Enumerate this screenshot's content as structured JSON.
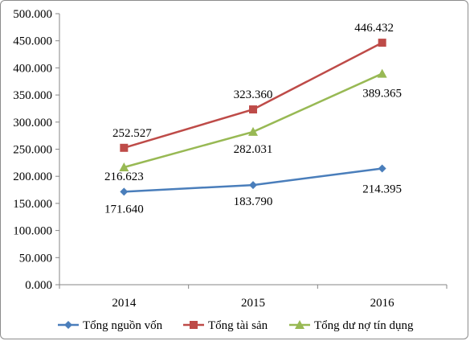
{
  "chart_data": {
    "type": "line",
    "categories": [
      "2014",
      "2015",
      "2016"
    ],
    "series": [
      {
        "name": "Tổng nguồn vốn",
        "values": [
          171640,
          183790,
          214395
        ],
        "labels": [
          "171.640",
          "183.790",
          "214.395"
        ],
        "color": "#4a7ebb",
        "marker": "diamond"
      },
      {
        "name": "Tổng tài sản",
        "values": [
          252527,
          323360,
          446432
        ],
        "labels": [
          "252.527",
          "323.360",
          "446.432"
        ],
        "color": "#be4b48",
        "marker": "square"
      },
      {
        "name": "Tổng dư nợ tín dụng",
        "values": [
          216623,
          282031,
          389365
        ],
        "labels": [
          "216.623",
          "282.031",
          "389.365"
        ],
        "color": "#98b954",
        "marker": "triangle"
      }
    ],
    "yticks": [
      0,
      50000,
      100000,
      150000,
      200000,
      250000,
      300000,
      350000,
      400000,
      450000,
      500000
    ],
    "ytick_labels": [
      "0.000",
      "50.000",
      "100.000",
      "150.000",
      "200.000",
      "250.000",
      "300.000",
      "350.000",
      "400.000",
      "450.000",
      "500.000"
    ],
    "ylim": [
      0,
      500000
    ],
    "grid": false,
    "legend_position": "bottom"
  }
}
